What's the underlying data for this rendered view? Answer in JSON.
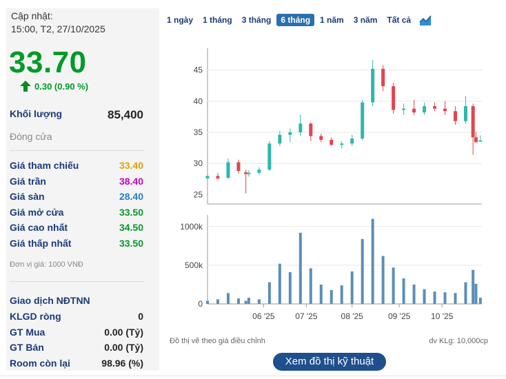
{
  "quote": {
    "updated_label": "Cập nhật:",
    "updated_time": "15:00, T2, 27/10/2025",
    "price": "33.70",
    "change": "0.30 (0.90 %)",
    "volume_label": "Khối lượng",
    "volume": "85,400",
    "status": "Đóng cửa",
    "colors": {
      "up": "#009a27",
      "ref": "#e0a000",
      "ceil": "#c400c4",
      "floor": "#1e7fc8",
      "label": "#1a3a78"
    }
  },
  "prices": [
    {
      "label": "Giá tham chiếu",
      "value": "33.40"
    },
    {
      "label": "Giá trần",
      "value": "38.40"
    },
    {
      "label": "Giá sàn",
      "value": "28.40"
    },
    {
      "label": "Giá mở cửa",
      "value": "33.50"
    },
    {
      "label": "Giá cao nhất",
      "value": "34.50"
    },
    {
      "label": "Giá thấp nhất",
      "value": "33.50"
    }
  ],
  "unit_note": "Đơn vị giá: 1000 VNĐ",
  "foreign": {
    "title": "Giao dịch NĐTNN",
    "rows": [
      {
        "label": "KLGD ròng",
        "value": "0"
      },
      {
        "label": "GT Mua",
        "value": "0.00 (Tỷ)"
      },
      {
        "label": "GT Bán",
        "value": "0.00 (Tỷ)"
      },
      {
        "label": "Room còn lại",
        "value": "98.96 (%)"
      }
    ]
  },
  "ranges": {
    "items": [
      "1 ngày",
      "1 tháng",
      "3 tháng",
      "6 tháng",
      "1 năm",
      "3 năm",
      "Tất cả"
    ],
    "active": "6 tháng",
    "chart_icon": "area-chart-icon"
  },
  "footer": {
    "note": "Đồ thị vẽ theo giá điều chỉnh",
    "vol_unit": "dv KLg: 10,000cp",
    "button": "Xem đồ thị kỹ thuật"
  },
  "chart_data": {
    "type": "candlestick",
    "colors": {
      "up": "#2fb7ad",
      "down": "#e0464d",
      "volume": "#5a8fb8"
    },
    "price_axis": {
      "ticks": [
        25,
        30,
        35,
        40,
        45
      ],
      "ylim": [
        23.5,
        48.5
      ]
    },
    "volume_axis": {
      "ticks": [
        0,
        500,
        1000
      ],
      "tick_labels": [
        "0",
        "500k",
        "1000k"
      ],
      "ylim": [
        0,
        1150
      ]
    },
    "x_ticks": [
      {
        "label": "06 '25",
        "date": "2025-06-02"
      },
      {
        "label": "07 '25",
        "date": "2025-07-01"
      },
      {
        "label": "08 '25",
        "date": "2025-08-01"
      },
      {
        "label": "09 '25",
        "date": "2025-09-02"
      },
      {
        "label": "10 '25",
        "date": "2025-10-01"
      }
    ],
    "x_range": [
      "2025-04-25",
      "2025-10-28"
    ],
    "series": [
      {
        "date": "2025-04-25",
        "open": 27.6,
        "high": 28.3,
        "low": 27.2,
        "close": 28.0
      },
      {
        "date": "2025-05-02",
        "open": 28.0,
        "high": 28.5,
        "low": 27.4,
        "close": 27.6
      },
      {
        "date": "2025-05-09",
        "open": 27.7,
        "high": 30.8,
        "low": 27.5,
        "close": 30.2
      },
      {
        "date": "2025-05-16",
        "open": 30.2,
        "high": 30.6,
        "low": 28.4,
        "close": 28.8
      },
      {
        "date": "2025-05-21",
        "open": 28.6,
        "high": 29.0,
        "low": 25.2,
        "close": 28.3
      },
      {
        "date": "2025-05-23",
        "open": 28.3,
        "high": 28.9,
        "low": 27.9,
        "close": 28.5
      },
      {
        "date": "2025-05-30",
        "open": 28.5,
        "high": 29.4,
        "low": 28.2,
        "close": 29.0
      },
      {
        "date": "2025-06-06",
        "open": 29.0,
        "high": 33.6,
        "low": 28.8,
        "close": 33.2
      },
      {
        "date": "2025-06-13",
        "open": 33.2,
        "high": 35.2,
        "low": 32.8,
        "close": 34.6
      },
      {
        "date": "2025-06-20",
        "open": 34.6,
        "high": 35.6,
        "low": 33.4,
        "close": 35.0
      },
      {
        "date": "2025-06-27",
        "open": 35.0,
        "high": 37.8,
        "low": 34.4,
        "close": 36.4
      },
      {
        "date": "2025-07-04",
        "open": 36.4,
        "high": 36.6,
        "low": 33.6,
        "close": 34.4
      },
      {
        "date": "2025-07-11",
        "open": 34.4,
        "high": 34.8,
        "low": 33.4,
        "close": 33.8
      },
      {
        "date": "2025-07-18",
        "open": 33.8,
        "high": 34.2,
        "low": 32.8,
        "close": 33.0
      },
      {
        "date": "2025-07-25",
        "open": 33.0,
        "high": 33.6,
        "low": 32.4,
        "close": 33.2
      },
      {
        "date": "2025-08-01",
        "open": 33.2,
        "high": 34.6,
        "low": 32.8,
        "close": 34.0
      },
      {
        "date": "2025-08-08",
        "open": 34.0,
        "high": 40.2,
        "low": 33.8,
        "close": 39.8
      },
      {
        "date": "2025-08-15",
        "open": 39.8,
        "high": 46.6,
        "low": 39.2,
        "close": 45.2
      },
      {
        "date": "2025-08-22",
        "open": 45.2,
        "high": 45.8,
        "low": 41.6,
        "close": 42.4
      },
      {
        "date": "2025-08-29",
        "open": 42.4,
        "high": 43.0,
        "low": 38.0,
        "close": 38.6
      },
      {
        "date": "2025-09-05",
        "open": 38.6,
        "high": 39.6,
        "low": 37.8,
        "close": 38.8
      },
      {
        "date": "2025-09-12",
        "open": 38.8,
        "high": 40.2,
        "low": 37.8,
        "close": 38.2
      },
      {
        "date": "2025-09-19",
        "open": 38.2,
        "high": 39.8,
        "low": 37.8,
        "close": 39.2
      },
      {
        "date": "2025-09-26",
        "open": 39.2,
        "high": 39.8,
        "low": 38.4,
        "close": 38.8
      },
      {
        "date": "2025-10-03",
        "open": 38.8,
        "high": 40.0,
        "low": 37.8,
        "close": 38.4
      },
      {
        "date": "2025-10-10",
        "open": 38.4,
        "high": 39.2,
        "low": 36.2,
        "close": 36.8
      },
      {
        "date": "2025-10-17",
        "open": 36.8,
        "high": 40.8,
        "low": 36.4,
        "close": 39.2
      },
      {
        "date": "2025-10-22",
        "open": 39.2,
        "high": 39.6,
        "low": 31.4,
        "close": 34.2
      },
      {
        "date": "2025-10-24",
        "open": 34.2,
        "high": 35.0,
        "low": 33.4,
        "close": 33.4
      },
      {
        "date": "2025-10-27",
        "open": 33.5,
        "high": 34.5,
        "low": 33.5,
        "close": 33.7
      }
    ],
    "volume": [
      {
        "date": "2025-04-25",
        "value": 40
      },
      {
        "date": "2025-05-02",
        "value": 60
      },
      {
        "date": "2025-05-09",
        "value": 140
      },
      {
        "date": "2025-05-16",
        "value": 70
      },
      {
        "date": "2025-05-21",
        "value": 40
      },
      {
        "date": "2025-05-23",
        "value": 80
      },
      {
        "date": "2025-05-30",
        "value": 60
      },
      {
        "date": "2025-06-06",
        "value": 280
      },
      {
        "date": "2025-06-13",
        "value": 520
      },
      {
        "date": "2025-06-20",
        "value": 410
      },
      {
        "date": "2025-06-27",
        "value": 920
      },
      {
        "date": "2025-07-04",
        "value": 460
      },
      {
        "date": "2025-07-11",
        "value": 250
      },
      {
        "date": "2025-07-18",
        "value": 180
      },
      {
        "date": "2025-07-25",
        "value": 240
      },
      {
        "date": "2025-08-01",
        "value": 420
      },
      {
        "date": "2025-08-08",
        "value": 840
      },
      {
        "date": "2025-08-15",
        "value": 1100
      },
      {
        "date": "2025-08-22",
        "value": 620
      },
      {
        "date": "2025-08-29",
        "value": 470
      },
      {
        "date": "2025-09-05",
        "value": 330
      },
      {
        "date": "2025-09-12",
        "value": 250
      },
      {
        "date": "2025-09-19",
        "value": 190
      },
      {
        "date": "2025-09-26",
        "value": 160
      },
      {
        "date": "2025-10-03",
        "value": 150
      },
      {
        "date": "2025-10-10",
        "value": 140
      },
      {
        "date": "2025-10-17",
        "value": 280
      },
      {
        "date": "2025-10-22",
        "value": 440
      },
      {
        "date": "2025-10-24",
        "value": 260
      },
      {
        "date": "2025-10-27",
        "value": 80
      }
    ]
  }
}
